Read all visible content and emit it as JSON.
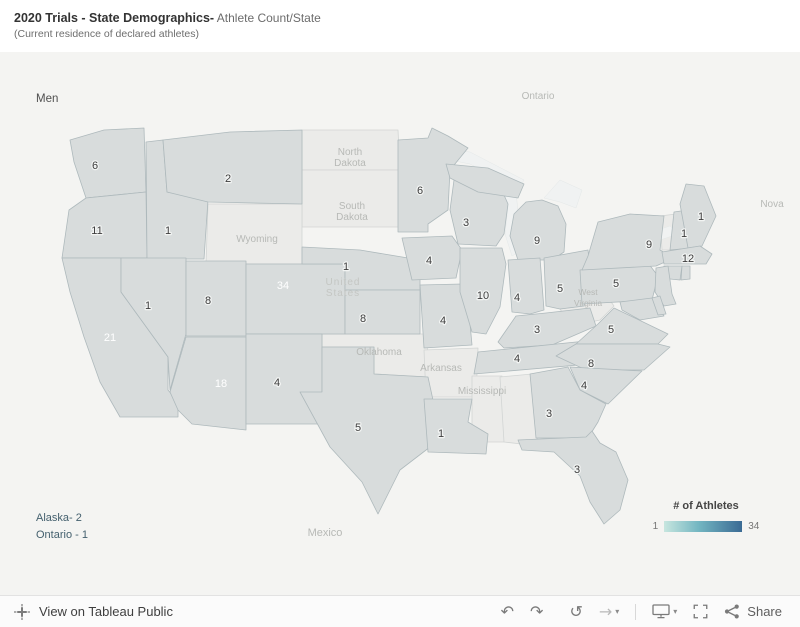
{
  "header": {
    "title_bold": "2020 Trials - State Demographics-",
    "title_light": " Athlete Count/State",
    "subtitle": "(Current residence of declared athletes)"
  },
  "map": {
    "pane_label": "Men",
    "annotations": {
      "alaska": "Alaska- 2",
      "ontario": "Ontario - 1"
    },
    "background_labels": {
      "ontario": "Ontario",
      "north_dakota": "North Dakota",
      "south_dakota": "South Dakota",
      "wyoming": "Wyoming",
      "united_states": "United States",
      "oklahoma": "Oklahoma",
      "arkansas": "Arkansas",
      "mississippi": "Mississippi",
      "west_virginia": "West Virginia",
      "mexico": "Mexico",
      "nova_scotia": "Nova"
    }
  },
  "legend": {
    "title": "# of Athletes",
    "min_label": "1",
    "max_label": "34"
  },
  "toolbar": {
    "view_label": "View on Tableau Public",
    "share_label": "Share",
    "undo_glyph": "↶",
    "redo_glyph": "↷",
    "reset_glyph": "↺",
    "forward_glyph": "→",
    "caret_glyph": "▾"
  },
  "chart_data": {
    "type": "choropleth",
    "title": "2020 Trials - State Demographics- Athlete Count/State",
    "subtitle": "(Current residence of declared athletes)",
    "legend_title": "# of Athletes",
    "value_range": [
      1,
      34
    ],
    "color_min": "#c7e6df",
    "color_mid": "#72b5c1",
    "color_max": "#3a6a94",
    "no_data_color": "#ebebe9",
    "small_state_color": "#b9dfda",
    "states": [
      {
        "state": "Washington",
        "value": 6
      },
      {
        "state": "Oregon",
        "value": 11
      },
      {
        "state": "California",
        "value": 21
      },
      {
        "state": "Nevada",
        "value": 1
      },
      {
        "state": "Idaho",
        "value": 1
      },
      {
        "state": "Montana",
        "value": 2
      },
      {
        "state": "Utah",
        "value": 8
      },
      {
        "state": "Arizona",
        "value": 18
      },
      {
        "state": "Colorado",
        "value": 34
      },
      {
        "state": "New Mexico",
        "value": 4
      },
      {
        "state": "Texas",
        "value": 5
      },
      {
        "state": "Nebraska",
        "value": 1
      },
      {
        "state": "Kansas",
        "value": 8
      },
      {
        "state": "Minnesota",
        "value": 6
      },
      {
        "state": "Iowa",
        "value": 4
      },
      {
        "state": "Missouri",
        "value": 4
      },
      {
        "state": "Louisiana",
        "value": 1
      },
      {
        "state": "Wisconsin",
        "value": 3
      },
      {
        "state": "Illinois",
        "value": 10
      },
      {
        "state": "Michigan",
        "value": 9
      },
      {
        "state": "Indiana",
        "value": 4
      },
      {
        "state": "Ohio",
        "value": 5
      },
      {
        "state": "Kentucky",
        "value": 3
      },
      {
        "state": "Tennessee",
        "value": 4
      },
      {
        "state": "Georgia",
        "value": 3
      },
      {
        "state": "Florida",
        "value": 3
      },
      {
        "state": "South Carolina",
        "value": 4
      },
      {
        "state": "North Carolina",
        "value": 8
      },
      {
        "state": "Virginia",
        "value": 5
      },
      {
        "state": "Pennsylvania",
        "value": 5
      },
      {
        "state": "New York",
        "value": 9
      },
      {
        "state": "Massachusetts",
        "value": 12
      },
      {
        "state": "New Hampshire",
        "value": 1
      },
      {
        "state": "Maine",
        "value": 1
      },
      {
        "state": "Alaska",
        "value": 2
      },
      {
        "state": "Ontario",
        "value": 1
      }
    ],
    "shaded_small_states": [
      "Connecticut",
      "Rhode Island",
      "New Jersey",
      "Maryland",
      "Delaware"
    ]
  }
}
